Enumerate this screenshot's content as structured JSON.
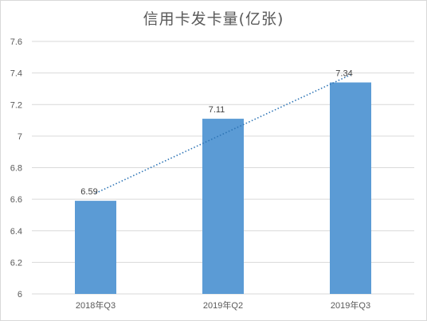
{
  "title": "信用卡发卡量(亿张)",
  "colors": {
    "bar": "#5b9bd5",
    "trendline": "#2e75b6",
    "grid": "#d9d9d9",
    "axis_text": "#595959"
  },
  "chart_data": {
    "type": "bar",
    "title": "信用卡发卡量(亿张)",
    "categories": [
      "2018年Q3",
      "2019年Q2",
      "2019年Q3"
    ],
    "values": [
      6.59,
      7.11,
      7.34
    ],
    "data_labels": [
      "6.59",
      "7.11",
      "7.34"
    ],
    "ylim": [
      6,
      7.6
    ],
    "yticks": [
      "6",
      "6.2",
      "6.4",
      "6.6",
      "6.8",
      "7",
      "7.2",
      "7.4",
      "7.6"
    ],
    "grid": true,
    "trendline": "linear, dotted",
    "xlabel": "",
    "ylabel": ""
  }
}
